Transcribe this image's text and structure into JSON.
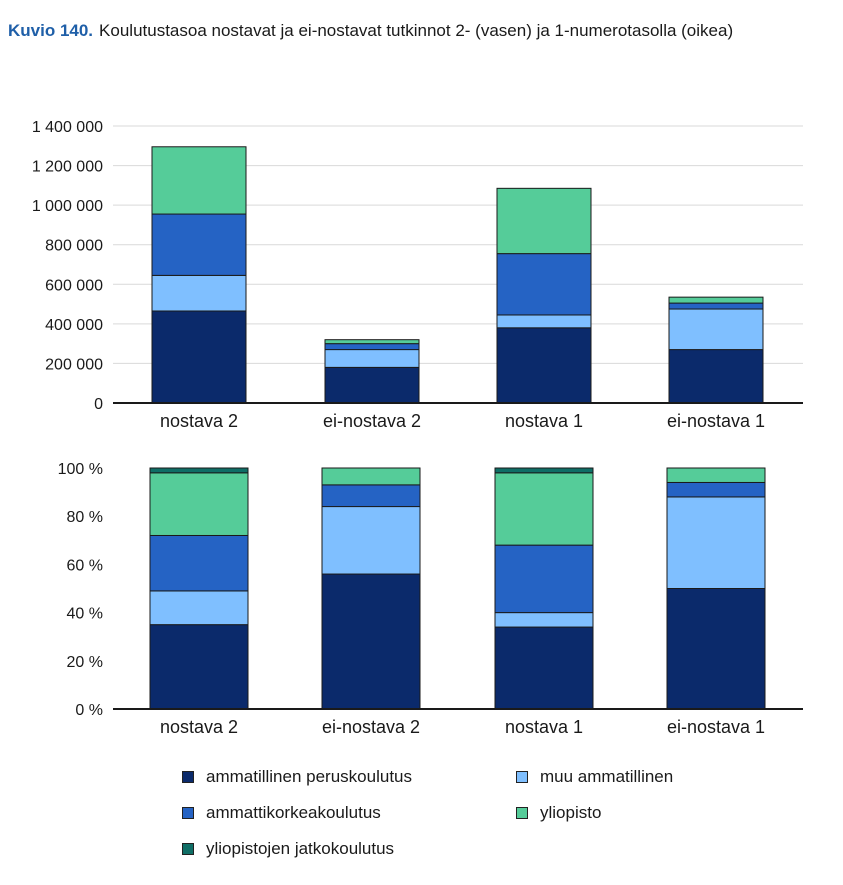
{
  "figure": {
    "number": "Kuvio 140.",
    "caption": "Koulutustasoa nostavat ja ei-nostavat tutkinnot 2- (vasen) ja 1-numerotasolla (oikea)"
  },
  "colors": {
    "ammatillinen_peruskoulutus": "#0b2a6b",
    "muu_ammatillinen": "#7fbfff",
    "ammattikorkeakoulutus": "#2563c4",
    "yliopisto": "#55cc99",
    "yliopistojen_jatkokoulutus": "#0f6e66"
  },
  "legend": [
    {
      "key": "ammatillinen_peruskoulutus",
      "label": "ammatillinen peruskoulutus"
    },
    {
      "key": "muu_ammatillinen",
      "label": "muu ammatillinen"
    },
    {
      "key": "ammattikorkeakoulutus",
      "label": "ammattikorkeakoulutus"
    },
    {
      "key": "yliopisto",
      "label": "yliopisto"
    },
    {
      "key": "yliopistojen_jatkokoulutus",
      "label": "yliopistojen jatkokoulutus"
    }
  ],
  "chart_data": [
    {
      "type": "bar",
      "stacked": true,
      "title": "",
      "categories": [
        "nostava 2",
        "ei-nostava 2",
        "nostava 1",
        "ei-nostava 1"
      ],
      "ylim": [
        0,
        1400000
      ],
      "yticks": [
        0,
        200000,
        400000,
        600000,
        800000,
        1000000,
        1200000,
        1400000
      ],
      "ytick_labels": [
        "0",
        "200 000",
        "400 000",
        "600 000",
        "800 000",
        "1 000 000",
        "1 200 000",
        "1 400 000"
      ],
      "grid": true,
      "series": [
        {
          "key": "ammatillinen_peruskoulutus",
          "name": "ammatillinen peruskoulutus",
          "values": [
            465000,
            180000,
            380000,
            270000
          ]
        },
        {
          "key": "muu_ammatillinen",
          "name": "muu ammatillinen",
          "values": [
            180000,
            90000,
            65000,
            205000
          ]
        },
        {
          "key": "ammattikorkeakoulutus",
          "name": "ammattikorkeakoulutus",
          "values": [
            310000,
            30000,
            310000,
            30000
          ]
        },
        {
          "key": "yliopisto",
          "name": "yliopisto",
          "values": [
            340000,
            20000,
            330000,
            30000
          ]
        },
        {
          "key": "yliopistojen_jatkokoulutus",
          "name": "yliopistojen jatkokoulutus",
          "values": [
            0,
            0,
            0,
            0
          ]
        }
      ]
    },
    {
      "type": "bar",
      "stacked": true,
      "title": "",
      "categories": [
        "nostava 2",
        "ei-nostava 2",
        "nostava 1",
        "ei-nostava 1"
      ],
      "ylim": [
        0,
        100
      ],
      "yticks": [
        0,
        20,
        40,
        60,
        80,
        100
      ],
      "ytick_labels": [
        "0 %",
        "20 %",
        "40 %",
        "60 %",
        "80 %",
        "100 %"
      ],
      "grid": false,
      "series": [
        {
          "key": "ammatillinen_peruskoulutus",
          "name": "ammatillinen peruskoulutus",
          "values": [
            35,
            56,
            34,
            50
          ]
        },
        {
          "key": "muu_ammatillinen",
          "name": "muu ammatillinen",
          "values": [
            14,
            28,
            6,
            38
          ]
        },
        {
          "key": "ammattikorkeakoulutus",
          "name": "ammattikorkeakoulutus",
          "values": [
            23,
            9,
            28,
            6
          ]
        },
        {
          "key": "yliopisto",
          "name": "yliopisto",
          "values": [
            26,
            7,
            30,
            6
          ]
        },
        {
          "key": "yliopistojen_jatkokoulutus",
          "name": "yliopistojen jatkokoulutus",
          "values": [
            2,
            0,
            2,
            0
          ]
        }
      ]
    }
  ]
}
